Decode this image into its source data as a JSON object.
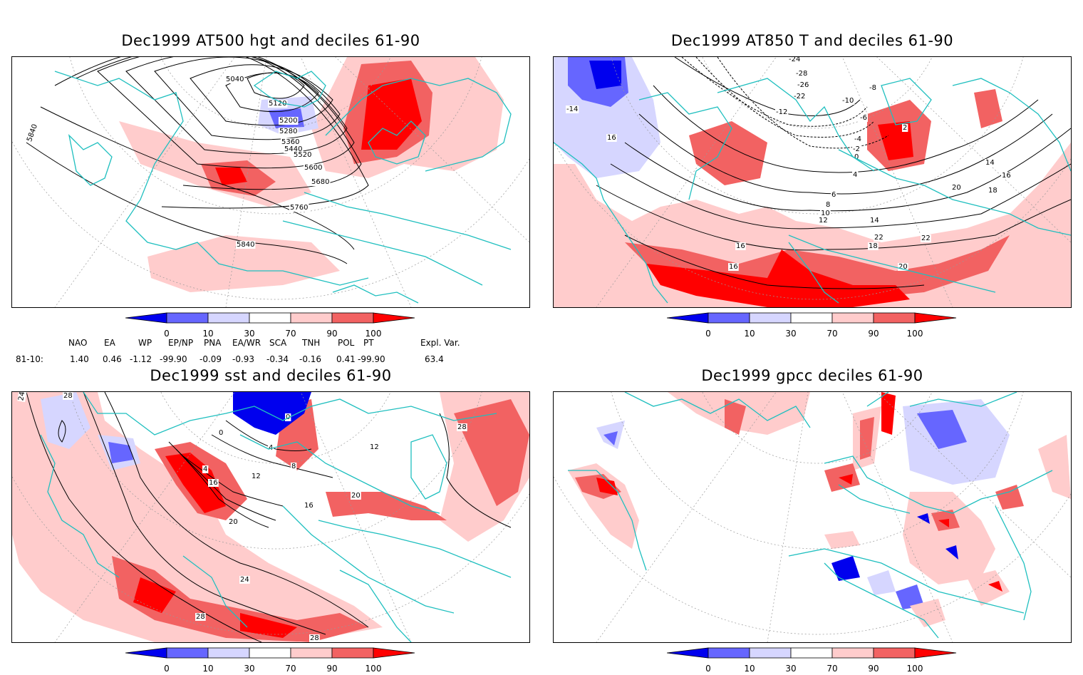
{
  "panels": [
    {
      "title": "Dec1999 AT500 hgt and deciles 61-90",
      "labels": [
        "5040",
        "5120",
        "5200",
        "5280",
        "5360",
        "5440",
        "5520",
        "5600",
        "5680",
        "5760",
        "5840",
        "5840"
      ]
    },
    {
      "title": "Dec1999 AT850 T and deciles 61-90",
      "labels": [
        "-24",
        "-28",
        "-26",
        "-22",
        "-10",
        "-8",
        "-6",
        "-12",
        "-4",
        "-2",
        "0",
        "2",
        "4",
        "6",
        "8",
        "10",
        "12",
        "14",
        "14",
        "16",
        "18",
        "20",
        "22",
        "16",
        "16",
        "18",
        "20",
        "22",
        "-14",
        "16"
      ]
    },
    {
      "title": "Dec1999 sst and deciles 61-90",
      "labels": [
        "24",
        "28",
        "0",
        "0",
        "4",
        "4",
        "8",
        "12",
        "12",
        "16",
        "16",
        "20",
        "20",
        "24",
        "28",
        "28",
        "28"
      ]
    },
    {
      "title": "Dec1999 gpcc deciles 61-90",
      "labels": []
    }
  ],
  "colorbar": {
    "ticks": [
      "0",
      "10",
      "30",
      "70",
      "90",
      "100"
    ],
    "colors": [
      "#0000ee",
      "#6666ff",
      "#d6d6ff",
      "#ffffff",
      "#ffcccc",
      "#f26262",
      "#ff0000"
    ]
  },
  "indices": {
    "headers": [
      "NAO",
      "EA",
      "WP",
      "EP/NP",
      "PNA",
      "EA/WR",
      "SCA",
      "TNH",
      "POL",
      "PT",
      "Expl. Var."
    ],
    "row_label": "81-10:",
    "values": [
      "1.40",
      "0.46",
      "-1.12",
      "-99.90",
      "-0.09",
      "-0.93",
      "-0.34",
      "-0.16",
      "0.41",
      "-99.90",
      "63.4"
    ]
  }
}
